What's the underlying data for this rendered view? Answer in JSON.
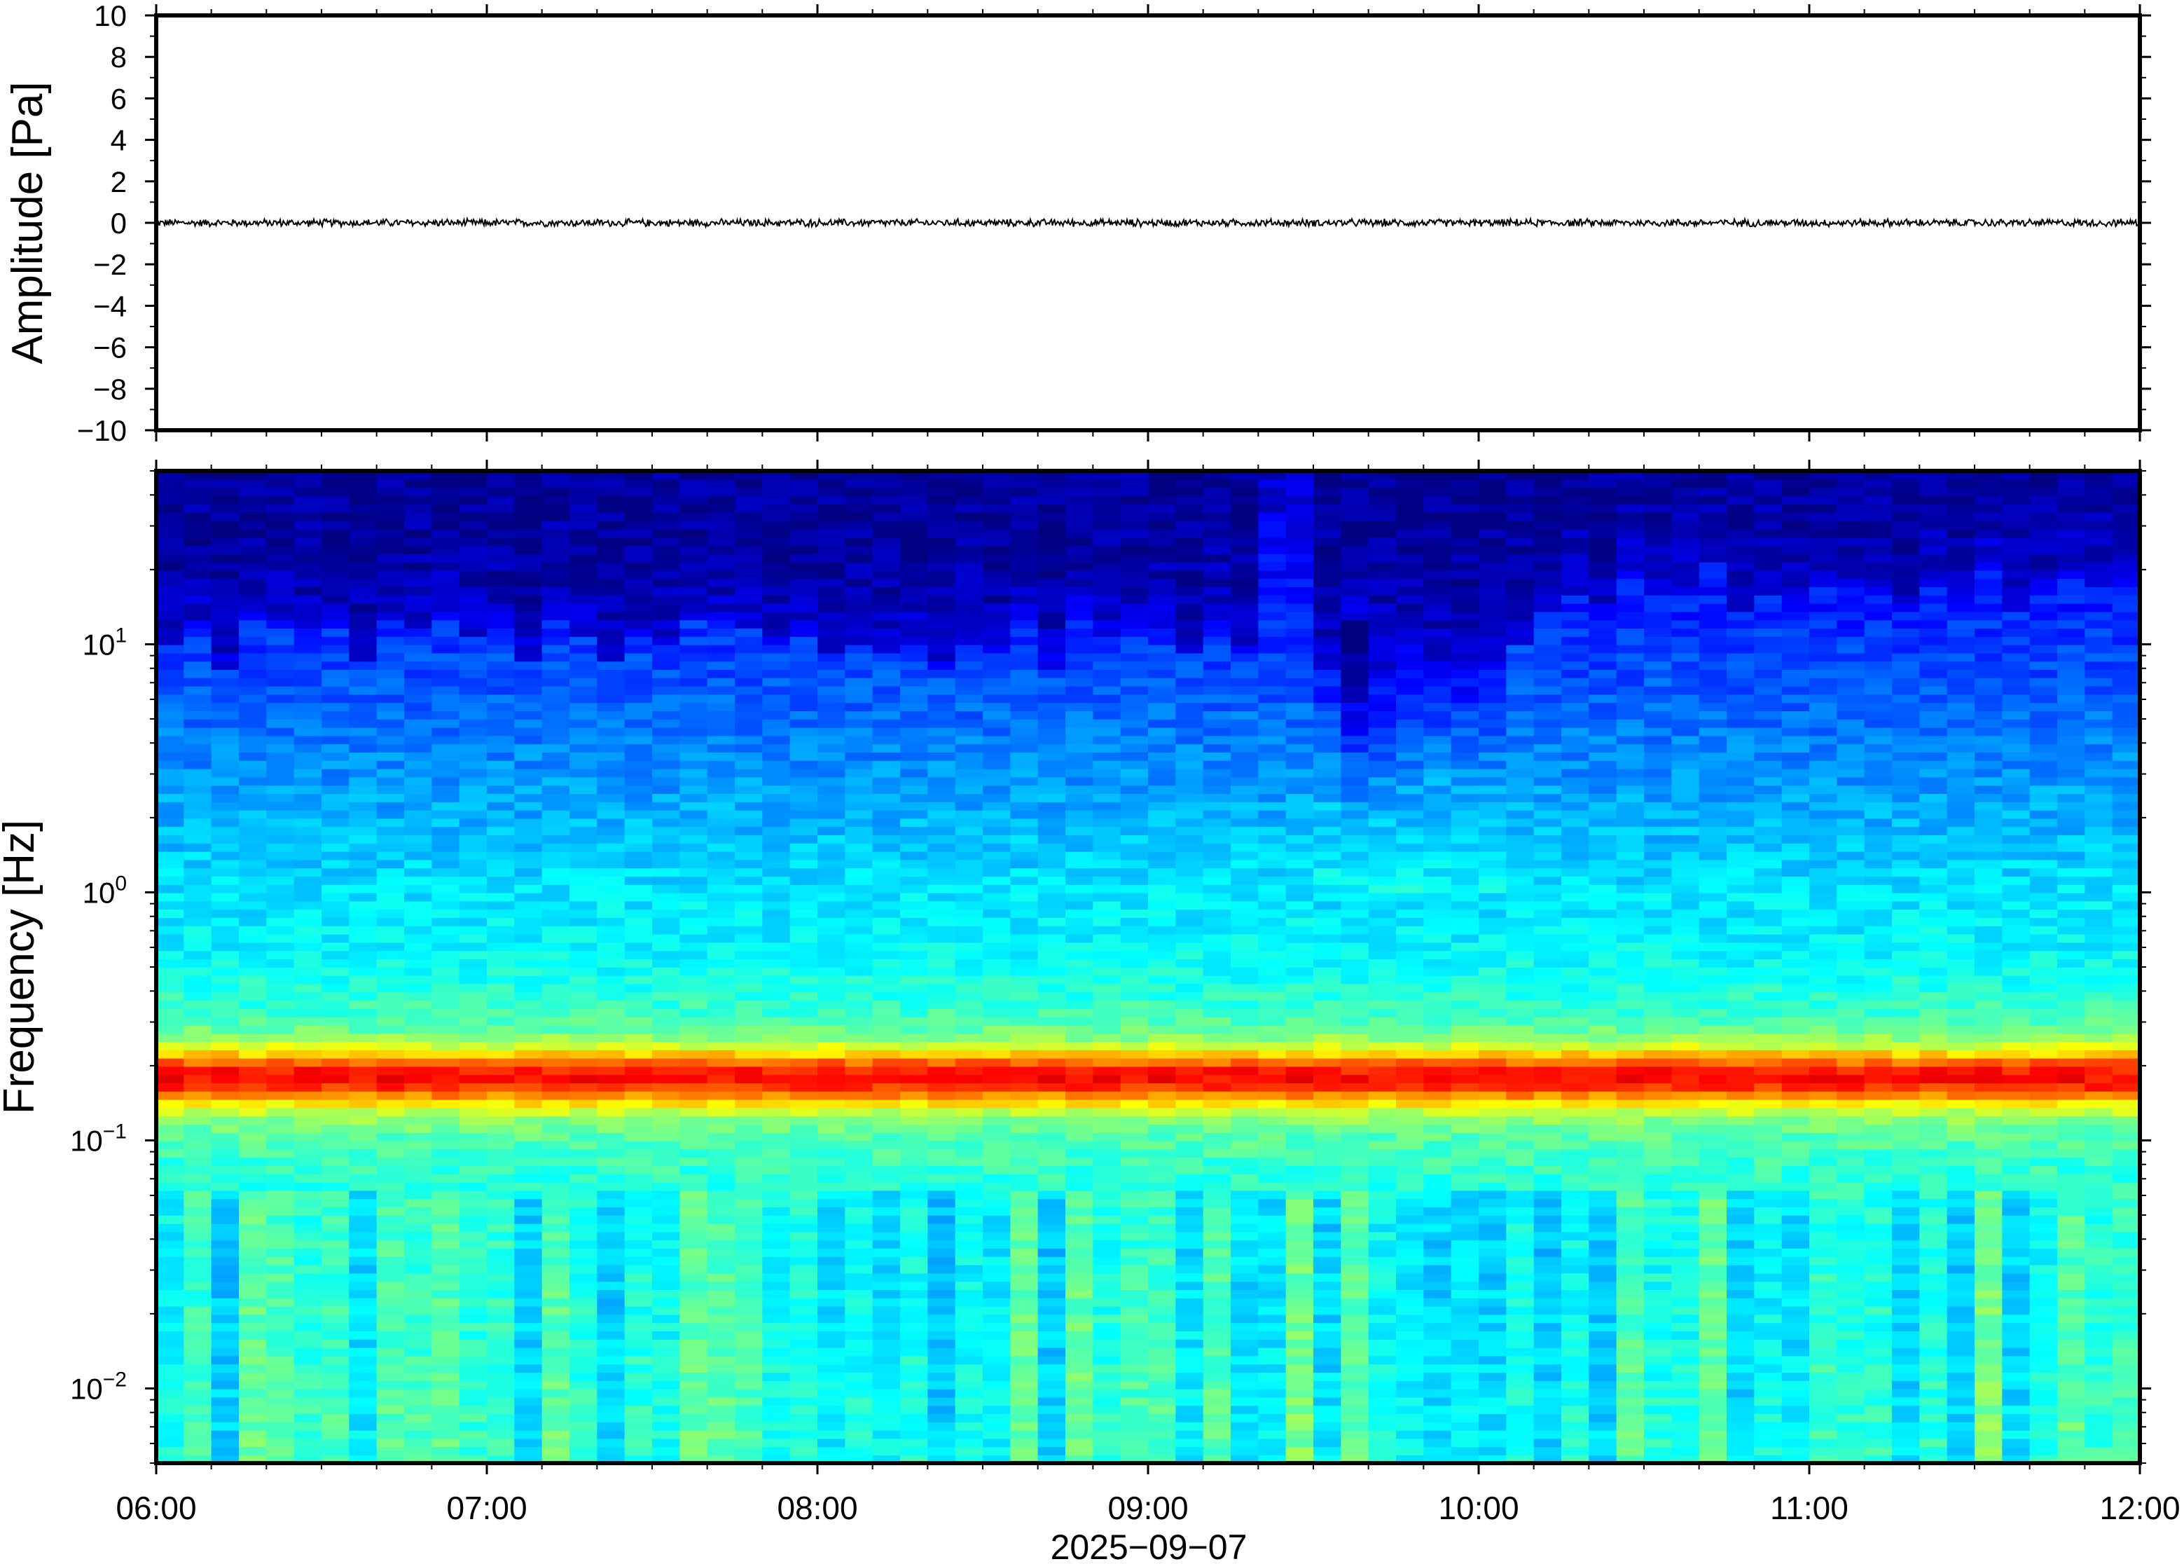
{
  "chart_data": [
    {
      "type": "line",
      "panel": "waveform",
      "ylabel": "Amplitude [Pa]",
      "xlabel": "",
      "ylim": [
        -10,
        10
      ],
      "xlim": [
        "06:00",
        "12:00"
      ],
      "yticks": [
        10,
        8,
        6,
        4,
        2,
        0,
        -2,
        -4,
        -6,
        -8,
        -10
      ],
      "ytick_labels": [
        "10",
        "8",
        "6",
        "4",
        "2",
        "0",
        "−2",
        "−4",
        "−6",
        "−8",
        "−10"
      ],
      "series": [
        {
          "description_values": "noise trace near zero amplitude",
          "approx_amplitude_range": [
            -0.15,
            0.15
          ],
          "color": "#000000"
        }
      ],
      "grid": false
    },
    {
      "type": "heatmap",
      "panel": "spectrogram",
      "ylabel": "Frequency [Hz]",
      "xlabel": "2025−09−07",
      "xlim": [
        "06:00",
        "12:00"
      ],
      "xtick_labels": [
        "06:00",
        "07:00",
        "08:00",
        "09:00",
        "10:00",
        "11:00",
        "12:00"
      ],
      "yscale": "log",
      "ylim": [
        0.005,
        50
      ],
      "yticks": [
        10,
        1,
        0.1,
        0.01
      ],
      "ytick_labels": [
        {
          "base": "10",
          "exp": "1"
        },
        {
          "base": "10",
          "exp": "0"
        },
        {
          "base": "10",
          "exp": "−1"
        },
        {
          "base": "10",
          "exp": "−2"
        }
      ],
      "colormap": "jet",
      "colors": {
        "low": "#0a0a7a",
        "mid": "#2fa8f0",
        "high": "#ff8c3c"
      },
      "features": {
        "microbarom_peak_hz": 0.18,
        "broadband_burst_time": [
          "09:22",
          "09:32"
        ]
      },
      "grid": false
    }
  ]
}
